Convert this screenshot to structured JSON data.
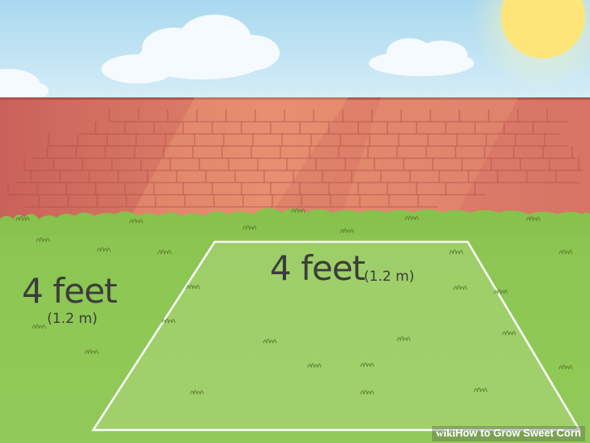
{
  "plot": {
    "side_length": {
      "value": "4 feet",
      "metric": "(1.2 m)"
    },
    "front_length": {
      "value": "4 feet",
      "metric": "(1.2 m)"
    }
  },
  "watermark": {
    "brand": "wiki",
    "how": "How",
    "title": " to Grow Sweet Corn"
  },
  "colors": {
    "sky": "#bfe4f3",
    "wall": "#cf6f60",
    "grass": "#8fc956",
    "plot_outline": "#ffffff",
    "sun": "#fde57a"
  },
  "icons": [
    "sun-icon",
    "cloud-icon",
    "brick-wall",
    "grass-tuft-icon"
  ]
}
